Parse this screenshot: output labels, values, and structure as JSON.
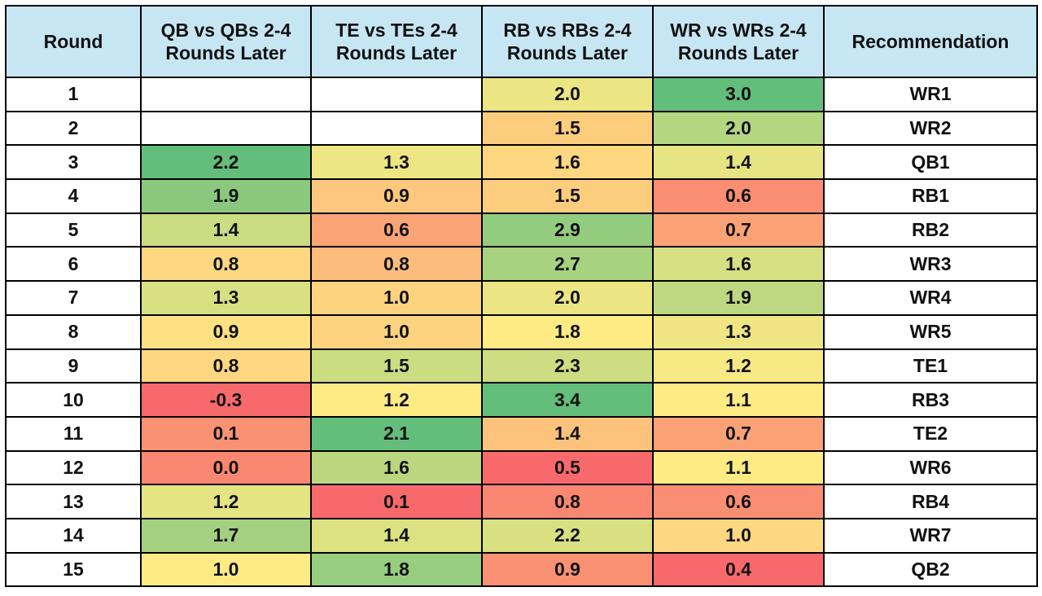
{
  "table": {
    "columns": [
      "Round",
      "QB vs QBs 2-4 Rounds Later",
      "TE vs TEs 2-4 Rounds Later",
      "RB vs RBs 2-4 Rounds Later",
      "WR vs WRs 2-4 Rounds Later",
      "Recommendation"
    ],
    "rows": [
      [
        "1",
        null,
        null,
        "2.0",
        "3.0",
        "WR1"
      ],
      [
        "2",
        null,
        null,
        "1.5",
        "2.0",
        "WR2"
      ],
      [
        "3",
        "2.2",
        "1.3",
        "1.6",
        "1.4",
        "QB1"
      ],
      [
        "4",
        "1.9",
        "0.9",
        "1.5",
        "0.6",
        "RB1"
      ],
      [
        "5",
        "1.4",
        "0.6",
        "2.9",
        "0.7",
        "RB2"
      ],
      [
        "6",
        "0.8",
        "0.8",
        "2.7",
        "1.6",
        "WR3"
      ],
      [
        "7",
        "1.3",
        "1.0",
        "2.0",
        "1.9",
        "WR4"
      ],
      [
        "8",
        "0.9",
        "1.0",
        "1.8",
        "1.3",
        "WR5"
      ],
      [
        "9",
        "0.8",
        "1.5",
        "2.3",
        "1.2",
        "TE1"
      ],
      [
        "10",
        "-0.3",
        "1.2",
        "3.4",
        "1.1",
        "RB3"
      ],
      [
        "11",
        "0.1",
        "2.1",
        "1.4",
        "0.7",
        "TE2"
      ],
      [
        "12",
        "0.0",
        "1.6",
        "0.5",
        "1.1",
        "WR6"
      ],
      [
        "13",
        "1.2",
        "0.1",
        "0.8",
        "0.6",
        "RB4"
      ],
      [
        "14",
        "1.7",
        "1.4",
        "2.2",
        "1.0",
        "WR7"
      ],
      [
        "15",
        "1.0",
        "1.8",
        "0.9",
        "0.4",
        "QB2"
      ]
    ]
  }
}
